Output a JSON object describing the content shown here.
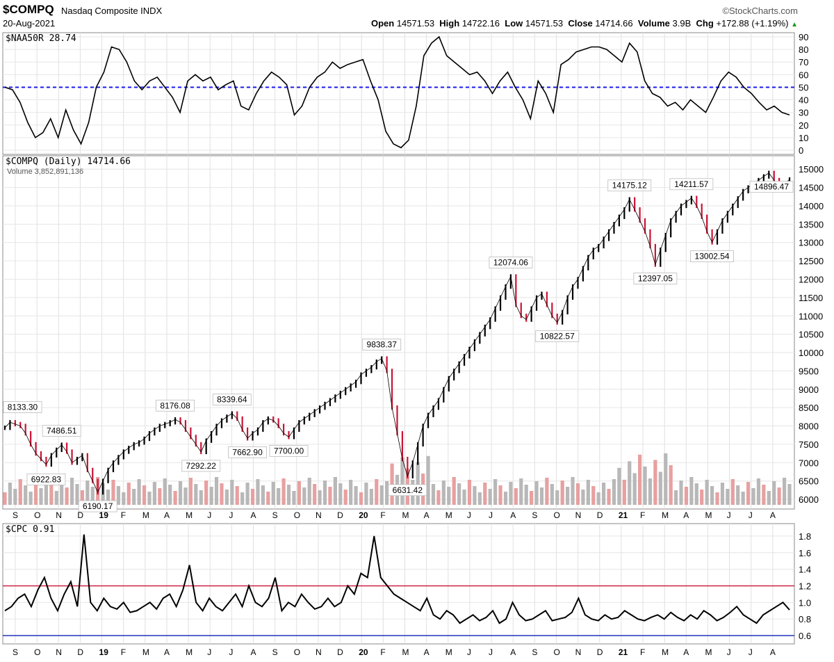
{
  "header": {
    "symbol": "$COMPQ",
    "name": "Nasdaq Composite INDX",
    "date": "20-Aug-2021",
    "source": "©StockCharts.com",
    "open_label": "Open",
    "open": "14571.53",
    "high_label": "High",
    "high": "14722.16",
    "low_label": "Low",
    "low": "14571.53",
    "close_label": "Close",
    "close": "14714.66",
    "volume_label": "Volume",
    "volume": "3.9B",
    "chg_label": "Chg",
    "chg": "+172.88 (+1.19%)",
    "chg_arrow": "▲"
  },
  "months": [
    "S",
    "O",
    "N",
    "D",
    "19",
    "F",
    "M",
    "A",
    "M",
    "J",
    "J",
    "A",
    "S",
    "O",
    "N",
    "D",
    "20",
    "F",
    "M",
    "A",
    "M",
    "J",
    "J",
    "A",
    "S",
    "O",
    "N",
    "D",
    "21",
    "F",
    "M",
    "A",
    "M",
    "J",
    "J",
    "A"
  ],
  "chart_data": [
    {
      "type": "line",
      "panel": "top",
      "legend": "$NAA50R 28.74",
      "ylim": [
        0,
        90
      ],
      "yticks": [
        0,
        10,
        20,
        30,
        40,
        50,
        60,
        70,
        80,
        90
      ],
      "reference_line": {
        "value": 50,
        "color": "#1a1aee",
        "style": "dashed"
      },
      "series": [
        {
          "values": [
            50,
            48,
            38,
            22,
            10,
            14,
            25,
            10,
            32,
            16,
            5,
            22,
            50,
            62,
            82,
            80,
            70,
            55,
            48,
            55,
            58,
            50,
            42,
            30,
            55,
            60,
            55,
            58,
            48,
            52,
            55,
            35,
            32,
            45,
            55,
            62,
            58,
            52,
            28,
            35,
            50,
            58,
            62,
            70,
            65,
            68,
            70,
            72,
            55,
            40,
            15,
            5,
            2,
            8,
            35,
            75,
            85,
            90,
            75,
            70,
            65,
            60,
            62,
            55,
            45,
            55,
            62,
            50,
            40,
            25,
            55,
            45,
            30,
            68,
            72,
            78,
            80,
            82,
            82,
            80,
            75,
            70,
            85,
            78,
            55,
            45,
            42,
            35,
            38,
            32,
            40,
            35,
            30,
            42,
            55,
            62,
            58,
            50,
            45,
            38,
            32,
            35,
            30,
            28
          ]
        }
      ]
    },
    {
      "type": "line",
      "panel": "main",
      "legend": "$COMPQ (Daily) 14714.66",
      "volume_legend": "Volume 3,852,891,136",
      "ylim": [
        5850,
        15250
      ],
      "yticks": [
        6000,
        6500,
        7000,
        7500,
        8000,
        8500,
        9000,
        9500,
        10000,
        10500,
        11000,
        11500,
        12000,
        12500,
        13000,
        13500,
        14000,
        14500,
        15000
      ],
      "series": [
        {
          "values": [
            7950,
            8100,
            8050,
            8000,
            7800,
            7500,
            7250,
            7100,
            6950,
            7200,
            7350,
            7486,
            7300,
            7000,
            7100,
            7200,
            6800,
            6500,
            6190,
            6500,
            6800,
            7000,
            7150,
            7300,
            7400,
            7500,
            7550,
            7650,
            7800,
            7900,
            8000,
            8050,
            8100,
            8176,
            8100,
            7900,
            7700,
            7500,
            7292,
            7600,
            7800,
            8000,
            8150,
            8250,
            8339,
            8200,
            7900,
            7663,
            7800,
            7900,
            8100,
            8200,
            8150,
            8000,
            7800,
            7700,
            7900,
            8100,
            8200,
            8300,
            8400,
            8500,
            8600,
            8700,
            8800,
            8900,
            9000,
            9100,
            9200,
            9400,
            9500,
            9600,
            9750,
            9838,
            9500,
            8500,
            7800,
            7100,
            6631,
            7000,
            7500,
            8000,
            8300,
            8500,
            8700,
            9000,
            9300,
            9500,
            9700,
            9900,
            10100,
            10300,
            10500,
            10700,
            10900,
            11200,
            11500,
            11800,
            12074,
            11300,
            11000,
            10900,
            11200,
            11500,
            11600,
            11300,
            11000,
            10823,
            11100,
            11500,
            11800,
            12000,
            12300,
            12600,
            12800,
            12900,
            13100,
            13300,
            13500,
            13700,
            13900,
            14175,
            13900,
            13600,
            13300,
            12900,
            12397,
            12800,
            13200,
            13600,
            13800,
            14000,
            14100,
            14212,
            14000,
            13700,
            13300,
            13003,
            13300,
            13600,
            13800,
            14000,
            14200,
            14400,
            14500,
            14600,
            14700,
            14800,
            14896,
            14700,
            14500,
            14600,
            14715
          ]
        }
      ],
      "annotations": [
        "8133.30",
        "7486.51",
        "6922.83",
        "6190.17",
        "8176.08",
        "7292.22",
        "8339.64",
        "7662.90",
        "7700.00",
        "9838.37",
        "6631.42",
        "12074.06",
        "10822.57",
        "14175.12",
        "12397.05",
        "14211.57",
        "13002.54",
        "14896.47"
      ]
    },
    {
      "type": "line",
      "panel": "bottom",
      "legend": "$CPC 0.91",
      "ylim": [
        0.55,
        1.9
      ],
      "yticks": [
        "0.6",
        "0.8",
        "1.0",
        "1.2",
        "1.4",
        "1.6",
        "1.8"
      ],
      "reference_lines": [
        {
          "value": 1.2,
          "color": "#cc2244"
        },
        {
          "value": 0.6,
          "color": "#2233bb"
        }
      ],
      "series": [
        {
          "values": [
            0.9,
            0.95,
            1.05,
            1.1,
            0.95,
            1.15,
            1.3,
            1.05,
            0.9,
            1.1,
            1.25,
            0.95,
            1.82,
            1.0,
            0.9,
            1.05,
            0.95,
            0.92,
            1.0,
            0.88,
            0.9,
            0.95,
            1.0,
            0.92,
            1.05,
            1.1,
            0.95,
            1.15,
            1.45,
            1.0,
            0.9,
            1.05,
            0.95,
            0.9,
            1.0,
            1.1,
            0.95,
            1.2,
            1.0,
            0.95,
            1.05,
            1.3,
            0.9,
            1.0,
            0.95,
            1.1,
            1.0,
            0.92,
            0.95,
            1.05,
            0.95,
            1.0,
            1.2,
            1.1,
            1.35,
            1.3,
            1.8,
            1.3,
            1.2,
            1.1,
            1.05,
            1.0,
            0.95,
            0.9,
            1.05,
            0.85,
            0.8,
            0.9,
            0.85,
            0.75,
            0.8,
            0.85,
            0.78,
            0.82,
            0.9,
            0.75,
            0.8,
            1.0,
            0.85,
            0.78,
            0.8,
            0.85,
            0.9,
            0.78,
            0.8,
            0.82,
            0.88,
            1.05,
            0.85,
            0.8,
            0.78,
            0.85,
            0.8,
            0.82,
            0.9,
            0.85,
            0.8,
            0.78,
            0.82,
            0.85,
            0.8,
            0.88,
            0.82,
            0.78,
            0.85,
            0.8,
            0.9,
            0.85,
            0.78,
            0.82,
            0.88,
            0.95,
            0.85,
            0.8,
            0.75,
            0.85,
            0.9,
            0.95,
            1.0,
            0.91
          ]
        }
      ]
    }
  ]
}
